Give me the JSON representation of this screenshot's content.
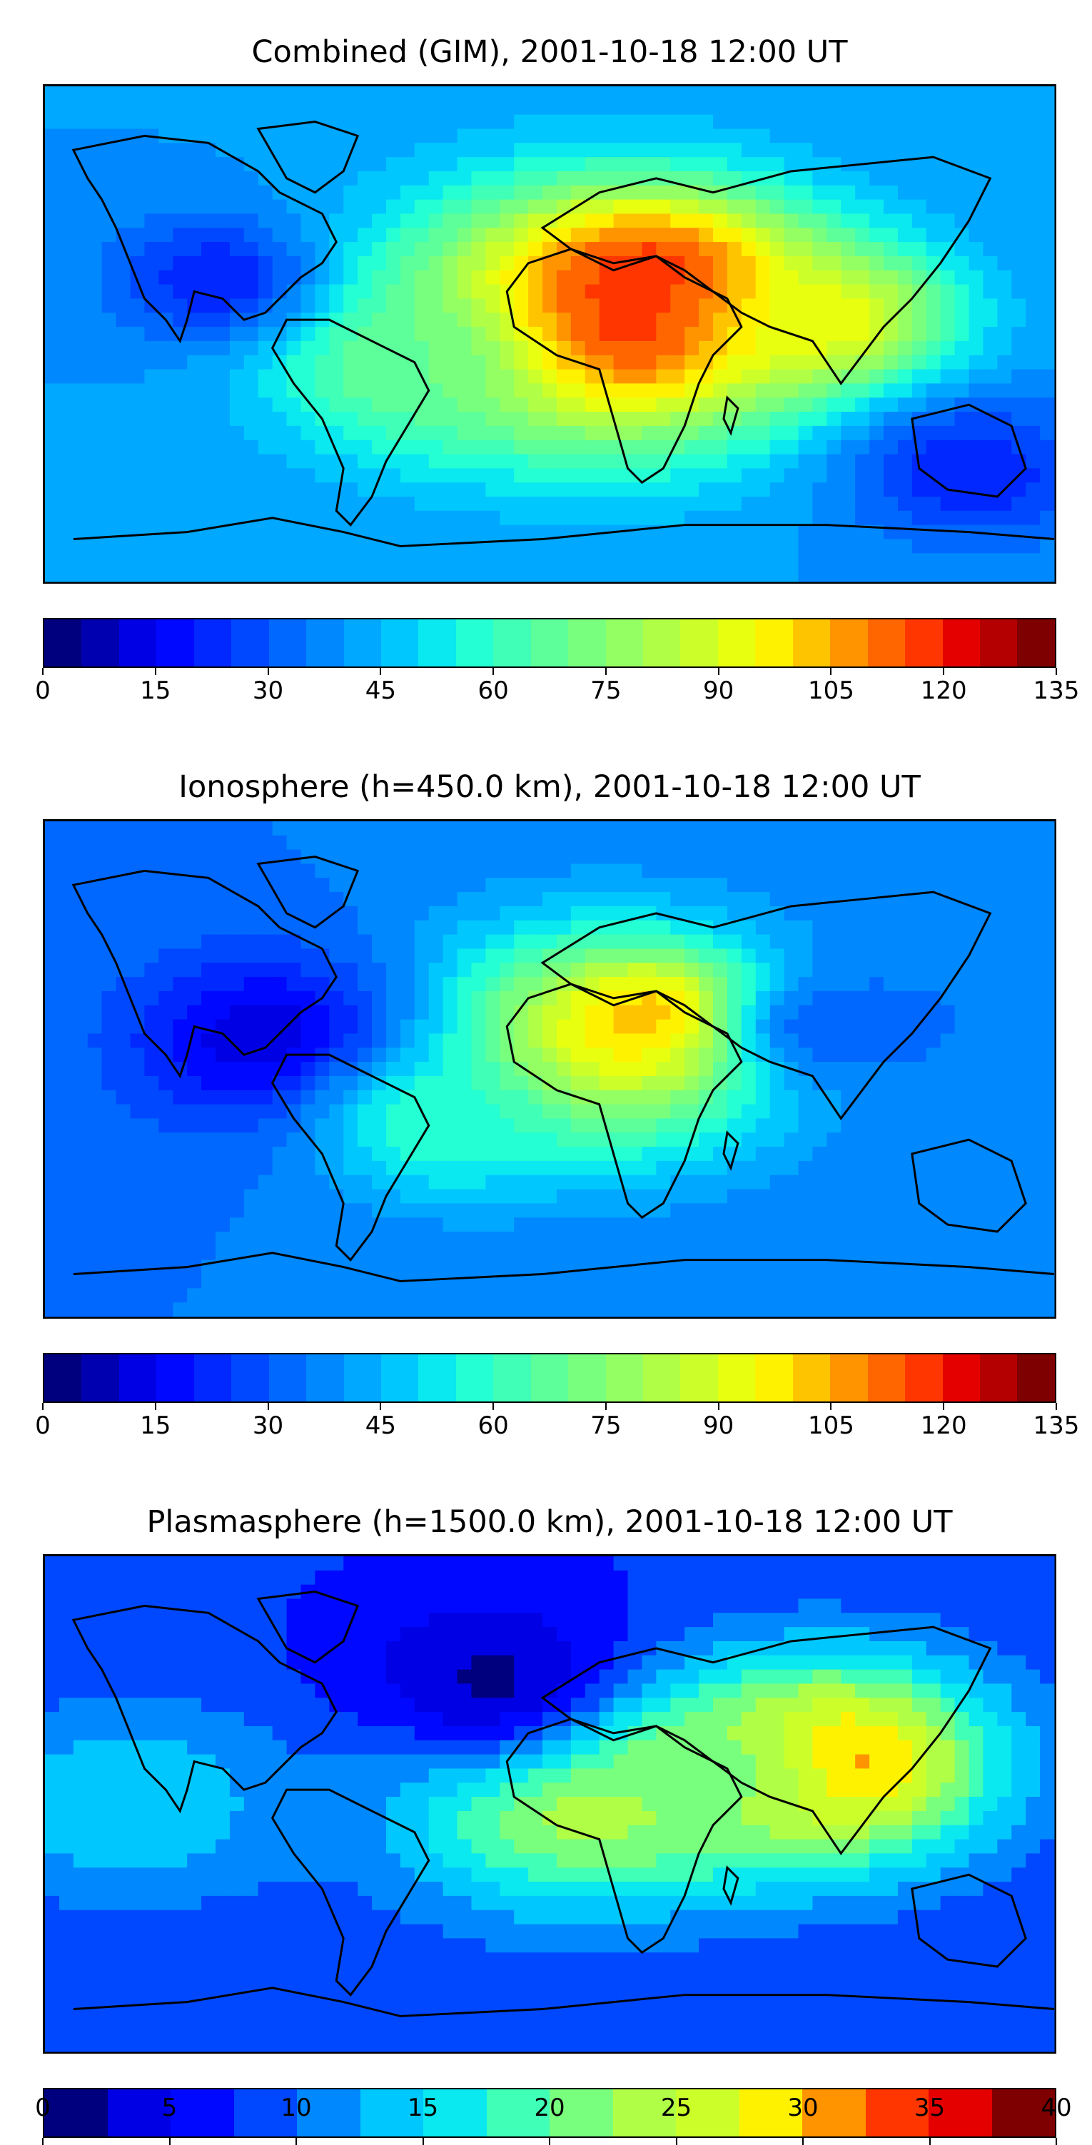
{
  "panels": [
    {
      "title": "Combined (GIM), 2001-10-18 12:00 UT",
      "colorbar": {
        "min": 0,
        "max": 135,
        "step": 5,
        "ticks": [
          "0",
          "15",
          "30",
          "45",
          "60",
          "75",
          "90",
          "105",
          "120",
          "135"
        ]
      },
      "field": {
        "background_value": 40,
        "blobs": [
          {
            "lon": 20,
            "lat": 5,
            "r": 50,
            "v": 125
          },
          {
            "lon": 40,
            "lat": 20,
            "r": 30,
            "v": 120
          },
          {
            "lon": 100,
            "lat": 5,
            "r": 30,
            "v": 95
          },
          {
            "lon": -50,
            "lat": -10,
            "r": 35,
            "v": 70
          },
          {
            "lon": -120,
            "lat": 20,
            "r": 25,
            "v": 20
          },
          {
            "lon": 150,
            "lat": -50,
            "r": 30,
            "v": 20
          }
        ]
      }
    },
    {
      "title": "Ionosphere  (h=450.0 km), 2001-10-18 12:00 UT",
      "colorbar": {
        "min": 0,
        "max": 135,
        "step": 5,
        "ticks": [
          "0",
          "15",
          "30",
          "45",
          "60",
          "75",
          "90",
          "105",
          "120",
          "135"
        ]
      },
      "field": {
        "background_value": 35,
        "blobs": [
          {
            "lon": 20,
            "lat": 10,
            "r": 45,
            "v": 95
          },
          {
            "lon": 40,
            "lat": 20,
            "r": 20,
            "v": 105
          },
          {
            "lon": -100,
            "lat": 10,
            "r": 35,
            "v": 10
          },
          {
            "lon": 100,
            "lat": 15,
            "r": 25,
            "v": 30
          },
          {
            "lon": -40,
            "lat": -20,
            "r": 30,
            "v": 60
          }
        ]
      }
    },
    {
      "title": "Plasmasphere (h=1500.0 km), 2001-10-18 12:00 UT",
      "colorbar": {
        "min": 0,
        "max": 40,
        "step": 2.5,
        "ticks": [
          "0",
          "5",
          "10",
          "15",
          "20",
          "25",
          "30",
          "35",
          "40"
        ]
      },
      "field": {
        "background_value": 8,
        "blobs": [
          {
            "lon": 100,
            "lat": 15,
            "r": 40,
            "v": 34
          },
          {
            "lon": 10,
            "lat": 5,
            "r": 45,
            "v": 27
          },
          {
            "lon": -20,
            "lat": 45,
            "r": 40,
            "v": 2
          },
          {
            "lon": -150,
            "lat": 0,
            "r": 40,
            "v": 15
          },
          {
            "lon": 60,
            "lat": 10,
            "r": 30,
            "v": 22
          }
        ]
      }
    }
  ],
  "jet_colors": [
    "#00007f",
    "#0000b0",
    "#0000e4",
    "#0008ff",
    "#0028ff",
    "#0048ff",
    "#0068ff",
    "#0088ff",
    "#00a8ff",
    "#00c8ff",
    "#0ae8f0",
    "#24ffd3",
    "#40ffb6",
    "#5cff9a",
    "#78ff7e",
    "#94ff62",
    "#b0ff46",
    "#ccff2a",
    "#e8ff0f",
    "#fff200",
    "#ffc400",
    "#ff9400",
    "#ff6600",
    "#ff3600",
    "#e50000",
    "#b40000",
    "#7f0000"
  ],
  "icons": {
    "coastlines": "continent-outline-icon"
  }
}
